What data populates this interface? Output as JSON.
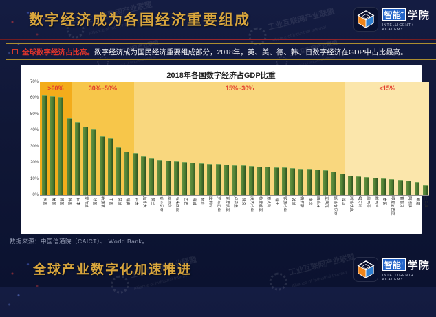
{
  "header": {
    "title": "数字经济成为各国经济重要组成"
  },
  "footer": {
    "title": "全球产业数字化加速推进"
  },
  "logo": {
    "boxed": "智能",
    "plus": "+",
    "rest": "学院",
    "subtitle": "INTELLIGENT+  ACADEMY"
  },
  "watermark": {
    "cn": "工业互联网产业联盟",
    "en": "Alliance of Industrial Internet"
  },
  "callout": {
    "highlight": "全球数字经济占比高。",
    "rest": "数字经济成为国民经济重要组成部分，2018年，英、美、德、韩、日数字经济在GDP中占比最高。"
  },
  "source": {
    "text": "数据来源：中国信通院（CAICT）、 World Bank。"
  },
  "theme": {
    "title_gold": "#d9a63d",
    "banner_border": "#ab8d30",
    "accent_red": "#e2352b",
    "background_navy": "#101736"
  },
  "chart_data": {
    "type": "bar",
    "title": "2018年各国数字经济占GDP比重",
    "ylabel": "",
    "xlabel": "",
    "ylim": [
      0,
      70
    ],
    "yticks": [
      "70%",
      "60%",
      "50%",
      "40%",
      "30%",
      "20%",
      "10%",
      "0%"
    ],
    "grid": false,
    "bar_color": "#4d7d32",
    "zone_label_color": "#e23b2b",
    "zones": [
      {
        "label": ">60%",
        "start_pct": 0,
        "end_pct": 8.1,
        "color": "#f3ac1b"
      },
      {
        "label": "30%~50%",
        "start_pct": 8.1,
        "end_pct": 24.2,
        "color": "#f7c64a"
      },
      {
        "label": "15%~30%",
        "start_pct": 24.2,
        "end_pct": 78.5,
        "color": "#f9d77e"
      },
      {
        "label": "<15%",
        "start_pct": 78.5,
        "end_pct": 100,
        "color": "#fbe6ab"
      }
    ],
    "categories": [
      "英国",
      "美国",
      "德国",
      "韩国",
      "日本",
      "爱尔兰",
      "法国",
      "新加坡",
      "中国",
      "芬兰",
      "瑞典",
      "丹麦",
      "加拿大",
      "荷兰",
      "爱沙尼亚",
      "奥地利",
      "马来西亚",
      "巴西",
      "挪威",
      "智利",
      "比利时",
      "罗马尼亚",
      "克罗地亚",
      "卢森堡",
      "捷克",
      "澳大利亚",
      "拉脱维亚",
      "意大利",
      "瑞士",
      "保加利亚",
      "波兰",
      "俄罗斯",
      "南非",
      "西班牙",
      "立陶宛",
      "斯洛文尼亚",
      "埃及",
      "斯洛伐克",
      "匈牙利",
      "墨西哥",
      "新西兰",
      "泰国",
      "印度尼西亚",
      "葡萄牙",
      "阿根廷",
      "希腊",
      "土耳其"
    ],
    "values": [
      61.5,
      60.5,
      60.2,
      47.5,
      45.0,
      42.0,
      40.5,
      36.0,
      34.8,
      29.0,
      26.5,
      25.5,
      23.5,
      22.5,
      21.5,
      21.0,
      20.5,
      20.0,
      19.6,
      19.3,
      19.0,
      18.7,
      18.4,
      18.1,
      17.8,
      17.5,
      17.2,
      17.0,
      16.8,
      16.5,
      16.2,
      16.0,
      15.8,
      15.5,
      14.8,
      14.2,
      12.6,
      11.5,
      11.0,
      10.5,
      10.2,
      9.8,
      9.4,
      9.0,
      8.5,
      7.5,
      5.5
    ]
  }
}
